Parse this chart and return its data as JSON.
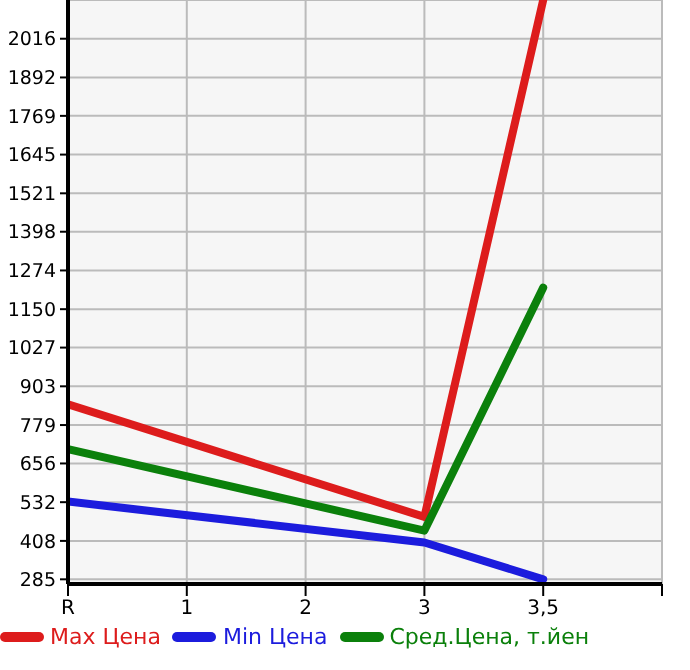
{
  "chart_data": {
    "type": "line",
    "categories": [
      "R",
      "1",
      "2",
      "3",
      "3,5",
      null
    ],
    "series": [
      {
        "name": "Max Цена",
        "color": "#dd1c1c",
        "values": [
          845,
          null,
          null,
          485,
          2140,
          null
        ]
      },
      {
        "name": "Min Цена",
        "color": "#1c1cdd",
        "values": [
          534,
          null,
          null,
          403,
          285,
          null
        ]
      },
      {
        "name": "Сред.Цена, т.йен",
        "color": "#0b800b",
        "values": [
          702,
          null,
          null,
          441,
          1219,
          null
        ]
      }
    ],
    "ylim": [
      270,
      2140
    ],
    "yticks": [
      285,
      408,
      532,
      656,
      779,
      903,
      1027,
      1150,
      1274,
      1398,
      1521,
      1645,
      1769,
      1892,
      2016
    ],
    "grid": true,
    "legend": "bottom",
    "marker": "none",
    "line_style": "solid"
  }
}
